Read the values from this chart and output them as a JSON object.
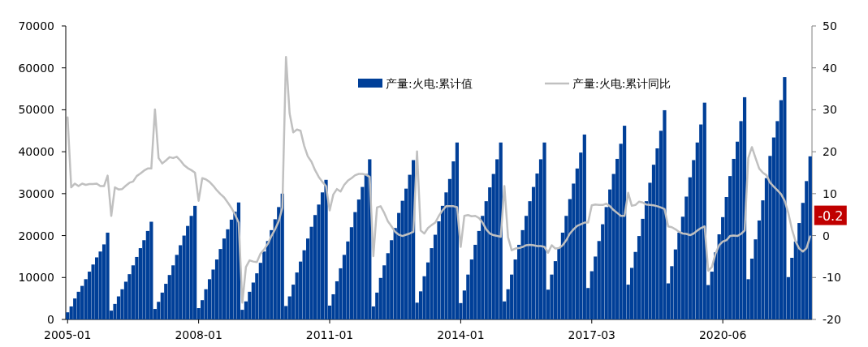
{
  "chart_data": {
    "type": "bar",
    "categories": [
      "2005-01",
      null,
      null,
      null,
      null,
      null,
      null,
      null,
      null,
      null,
      null,
      null,
      null,
      null,
      null,
      null,
      null,
      null,
      null,
      null,
      null,
      null,
      null,
      null,
      null,
      null,
      null,
      null,
      null,
      null,
      null,
      null,
      null,
      null,
      null,
      null,
      "2008-01",
      null,
      null,
      null,
      null,
      null,
      null,
      null,
      null,
      null,
      null,
      null,
      null,
      null,
      null,
      null,
      null,
      null,
      null,
      null,
      null,
      null,
      null,
      null,
      null,
      null,
      null,
      null,
      null,
      null,
      null,
      null,
      null,
      null,
      null,
      null,
      "2011-01",
      null,
      null,
      null,
      null,
      null,
      null,
      null,
      null,
      null,
      null,
      null,
      null,
      null,
      null,
      null,
      null,
      null,
      null,
      null,
      null,
      null,
      null,
      null,
      null,
      null,
      null,
      null,
      null,
      null,
      null,
      null,
      null,
      null,
      null,
      null,
      "2014-01",
      null,
      null,
      null,
      null,
      null,
      null,
      null,
      null,
      null,
      null,
      null,
      null,
      null,
      null,
      null,
      null,
      null,
      null,
      null,
      null,
      null,
      null,
      null,
      null,
      null,
      null,
      null,
      null,
      null,
      null,
      null,
      null,
      null,
      null,
      null,
      "2017-03",
      null,
      null,
      null,
      null,
      null,
      null,
      null,
      null,
      null,
      null,
      null,
      null,
      null,
      null,
      null,
      null,
      null,
      null,
      null,
      null,
      null,
      null,
      null,
      null,
      null,
      null,
      null,
      null,
      null,
      null,
      null,
      null,
      null,
      null,
      null,
      "2020-06",
      null,
      null,
      null,
      null,
      null,
      null,
      null,
      null,
      null,
      null,
      null,
      null,
      null,
      null,
      null,
      null,
      null,
      null,
      null,
      null,
      null,
      null,
      null,
      null
    ],
    "series": [
      {
        "name": "产量:火电:累计值",
        "color": "#003f98",
        "values": [
          1700,
          3100,
          5000,
          6600,
          8000,
          9600,
          11400,
          13100,
          14800,
          16200,
          17900,
          20700,
          2100,
          3700,
          5500,
          7200,
          9000,
          10800,
          12900,
          14900,
          17000,
          18900,
          21100,
          23300,
          2500,
          4200,
          6400,
          8500,
          10600,
          12900,
          15400,
          17700,
          20000,
          22300,
          24700,
          27100,
          2700,
          4600,
          7200,
          9600,
          11900,
          14300,
          16800,
          19300,
          21500,
          23800,
          25700,
          27900,
          2300,
          4300,
          6600,
          8800,
          11000,
          13500,
          16200,
          18700,
          21300,
          23900,
          26800,
          30000,
          3200,
          5500,
          8300,
          11200,
          13800,
          16500,
          19300,
          22100,
          24900,
          27400,
          30300,
          33300,
          3300,
          6000,
          9100,
          12200,
          15400,
          18600,
          22000,
          25600,
          28600,
          31600,
          34700,
          38200,
          3100,
          6400,
          9900,
          12900,
          15800,
          18900,
          21800,
          25400,
          28300,
          31200,
          34500,
          38000,
          4000,
          6700,
          10300,
          13600,
          17000,
          20200,
          23400,
          27100,
          30300,
          33500,
          37700,
          42200,
          3900,
          6900,
          10700,
          14300,
          17800,
          21100,
          24700,
          28200,
          31500,
          34700,
          38200,
          42200,
          4300,
          7200,
          10700,
          14300,
          17800,
          21300,
          24700,
          28200,
          31600,
          34800,
          38200,
          42200,
          7100,
          10700,
          13900,
          17100,
          20700,
          24700,
          28700,
          32400,
          36000,
          39800,
          44100,
          7500,
          11500,
          15000,
          18700,
          22700,
          26800,
          31000,
          34700,
          38300,
          41900,
          46200,
          8300,
          12300,
          16100,
          19900,
          24000,
          28200,
          32600,
          36900,
          40800,
          45000,
          49900,
          8600,
          12700,
          16700,
          20700,
          24500,
          29300,
          33900,
          38000,
          42200,
          46500,
          51700,
          8200,
          11400,
          16000,
          20300,
          24400,
          29200,
          34200,
          38300,
          42400,
          47300,
          53000,
          9600,
          14500,
          19100,
          23600,
          28400,
          33700,
          39000,
          43400,
          47300,
          52300,
          57800,
          10100,
          14700,
          18600,
          23000,
          27800,
          33000,
          38900
        ]
      },
      {
        "name": "产量:火电:累计同比",
        "type": "line",
        "axis": "y2",
        "color": "#c0c0c0",
        "values": [
          28.2,
          11.5,
          12.4,
          11.8,
          12.4,
          12.1,
          12.3,
          12.3,
          12.4,
          11.8,
          11.8,
          14.3,
          4.7,
          11.5,
          11.0,
          11.1,
          11.9,
          12.6,
          12.9,
          14.2,
          14.8,
          15.5,
          16.0,
          16.0,
          30.1,
          18.5,
          17.2,
          17.9,
          18.7,
          18.5,
          18.8,
          17.9,
          16.8,
          16.1,
          15.6,
          15.0,
          8.3,
          13.7,
          13.4,
          12.8,
          11.9,
          10.8,
          9.9,
          9.1,
          7.9,
          6.6,
          5.0,
          3.1,
          -16.0,
          -7.5,
          -5.9,
          -6.2,
          -6.3,
          -4.3,
          -3.3,
          -2.0,
          -0.1,
          1.5,
          3.4,
          6.6,
          42.6,
          29.1,
          24.6,
          25.3,
          25.0,
          21.4,
          18.9,
          17.6,
          15.6,
          14.0,
          12.8,
          11.8,
          6.0,
          9.8,
          11.1,
          10.5,
          12.1,
          13.1,
          13.7,
          14.4,
          14.7,
          14.7,
          14.5,
          14.0,
          -4.9,
          6.7,
          7.0,
          5.4,
          3.4,
          2.2,
          0.9,
          0.2,
          -0.1,
          0.2,
          0.5,
          0.9,
          20.1,
          1.2,
          0.5,
          1.8,
          2.5,
          3.1,
          4.7,
          6.0,
          7.0,
          7.0,
          7.0,
          6.8,
          -2.7,
          4.7,
          4.9,
          4.6,
          4.7,
          4.2,
          3.1,
          1.5,
          0.5,
          0.1,
          -0.1,
          -0.3,
          11.8,
          -0.4,
          -3.5,
          -3.1,
          -3.0,
          -2.7,
          -2.3,
          -2.2,
          -2.3,
          -2.5,
          -2.5,
          -2.7,
          -4.1,
          -2.3,
          -3.1,
          -3.0,
          -2.3,
          -1.1,
          0.5,
          1.5,
          2.3,
          2.7,
          3.1,
          3.1,
          7.2,
          7.4,
          7.3,
          7.3,
          7.6,
          7.0,
          6.1,
          5.4,
          4.7,
          4.7,
          10.2,
          7.1,
          7.3,
          8.1,
          7.9,
          7.4,
          7.3,
          7.2,
          7.0,
          6.7,
          6.3,
          2.2,
          2.0,
          1.5,
          0.9,
          0.5,
          0.4,
          0.1,
          0.5,
          1.2,
          1.8,
          2.2,
          -8.4,
          -7.5,
          -4.3,
          -2.3,
          -1.4,
          -1.1,
          -0.1,
          0.0,
          -0.1,
          0.4,
          1.2,
          18.5,
          21.1,
          18.5,
          16.0,
          15.0,
          14.4,
          12.6,
          11.7,
          10.8,
          9.9,
          8.3,
          5.4,
          1.5,
          -1.4,
          -3.1,
          -3.8,
          -3.0,
          -0.2
        ],
        "value_labels": [
          null,
          null,
          null,
          null,
          null,
          null,
          null,
          null,
          null,
          null,
          null,
          null,
          null,
          null,
          null,
          null,
          null,
          null,
          null,
          null,
          null,
          null,
          null,
          null,
          null,
          null,
          null,
          null,
          null,
          null,
          null,
          null,
          null,
          null,
          null,
          null,
          null,
          null,
          null,
          null,
          null,
          null,
          null,
          null,
          null,
          null,
          null,
          null,
          null,
          null,
          null,
          null,
          null,
          null,
          null,
          null,
          null,
          null,
          null,
          null,
          null,
          null,
          null,
          null,
          null,
          null,
          null,
          null,
          null,
          null,
          null,
          null,
          null,
          null,
          null,
          null,
          null,
          null,
          null,
          null,
          null,
          null,
          null,
          null,
          null,
          null,
          null,
          null,
          null,
          null,
          null,
          null,
          null,
          null,
          null,
          null,
          null,
          null,
          null,
          null,
          null,
          null,
          null,
          null,
          null,
          null,
          null,
          null,
          null,
          null,
          null,
          null,
          null,
          null,
          null,
          null,
          null,
          null,
          null,
          null,
          null,
          null,
          null,
          null,
          null,
          null,
          null,
          null,
          null,
          null,
          null,
          null,
          null,
          null,
          null,
          null,
          null,
          null,
          null,
          null,
          null,
          null,
          null,
          null,
          null,
          null,
          null,
          null,
          null,
          null,
          null,
          null,
          null,
          null,
          null,
          null,
          null,
          null,
          null,
          null,
          null,
          null,
          null,
          null,
          null,
          null,
          null,
          null,
          null,
          null,
          null,
          null,
          null,
          null,
          null,
          null,
          null,
          null,
          null,
          null,
          null,
          null,
          null,
          null,
          null,
          null,
          null,
          null,
          null,
          null,
          null,
          null,
          null,
          null,
          null,
          null,
          null,
          null,
          null,
          null,
          null,
          null,
          null,
          null,
          "-0.2"
        ]
      }
    ],
    "ylim": [
      0,
      70000
    ],
    "yticks": [
      0,
      10000,
      20000,
      30000,
      40000,
      50000,
      60000,
      70000
    ],
    "y2lim": [
      -20,
      50
    ],
    "y2ticks": [
      -20,
      -10,
      0,
      10,
      20,
      30,
      40,
      50
    ],
    "legend": "top",
    "grid": false
  }
}
